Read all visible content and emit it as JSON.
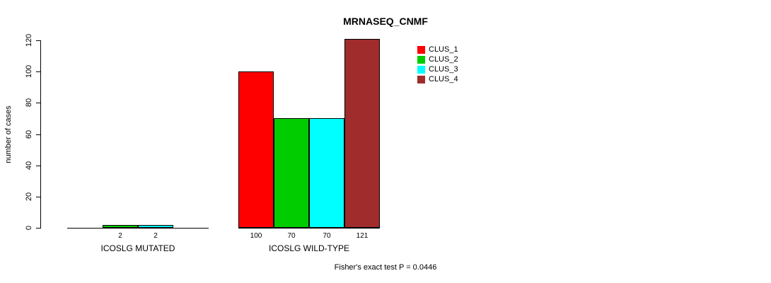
{
  "title": "MRNASEQ_CNMF",
  "footer": "Fisher's exact test P = 0.0446",
  "chart_data": {
    "type": "bar",
    "title": "MRNASEQ_CNMF",
    "xlabel": "",
    "ylabel": "number of cases",
    "ylim": [
      0,
      120
    ],
    "yticks": [
      0,
      20,
      40,
      60,
      80,
      100,
      120
    ],
    "grid": false,
    "legend_position": "top-right",
    "series": [
      {
        "name": "CLUS_1",
        "color": "#FF0000"
      },
      {
        "name": "CLUS_2",
        "color": "#00CC00"
      },
      {
        "name": "CLUS_3",
        "color": "#00FFFF"
      },
      {
        "name": "CLUS_4",
        "color": "#A02C2C"
      }
    ],
    "groups": [
      {
        "label": "ICOSLG MUTATED",
        "values": [
          0,
          2,
          2,
          0
        ],
        "bar_labels": [
          "",
          "2",
          "2",
          ""
        ]
      },
      {
        "label": "ICOSLG WILD-TYPE",
        "values": [
          100,
          70,
          70,
          121
        ],
        "bar_labels": [
          "100",
          "70",
          "70",
          "121"
        ]
      }
    ],
    "annotation": "Fisher's exact test P = 0.0446"
  }
}
